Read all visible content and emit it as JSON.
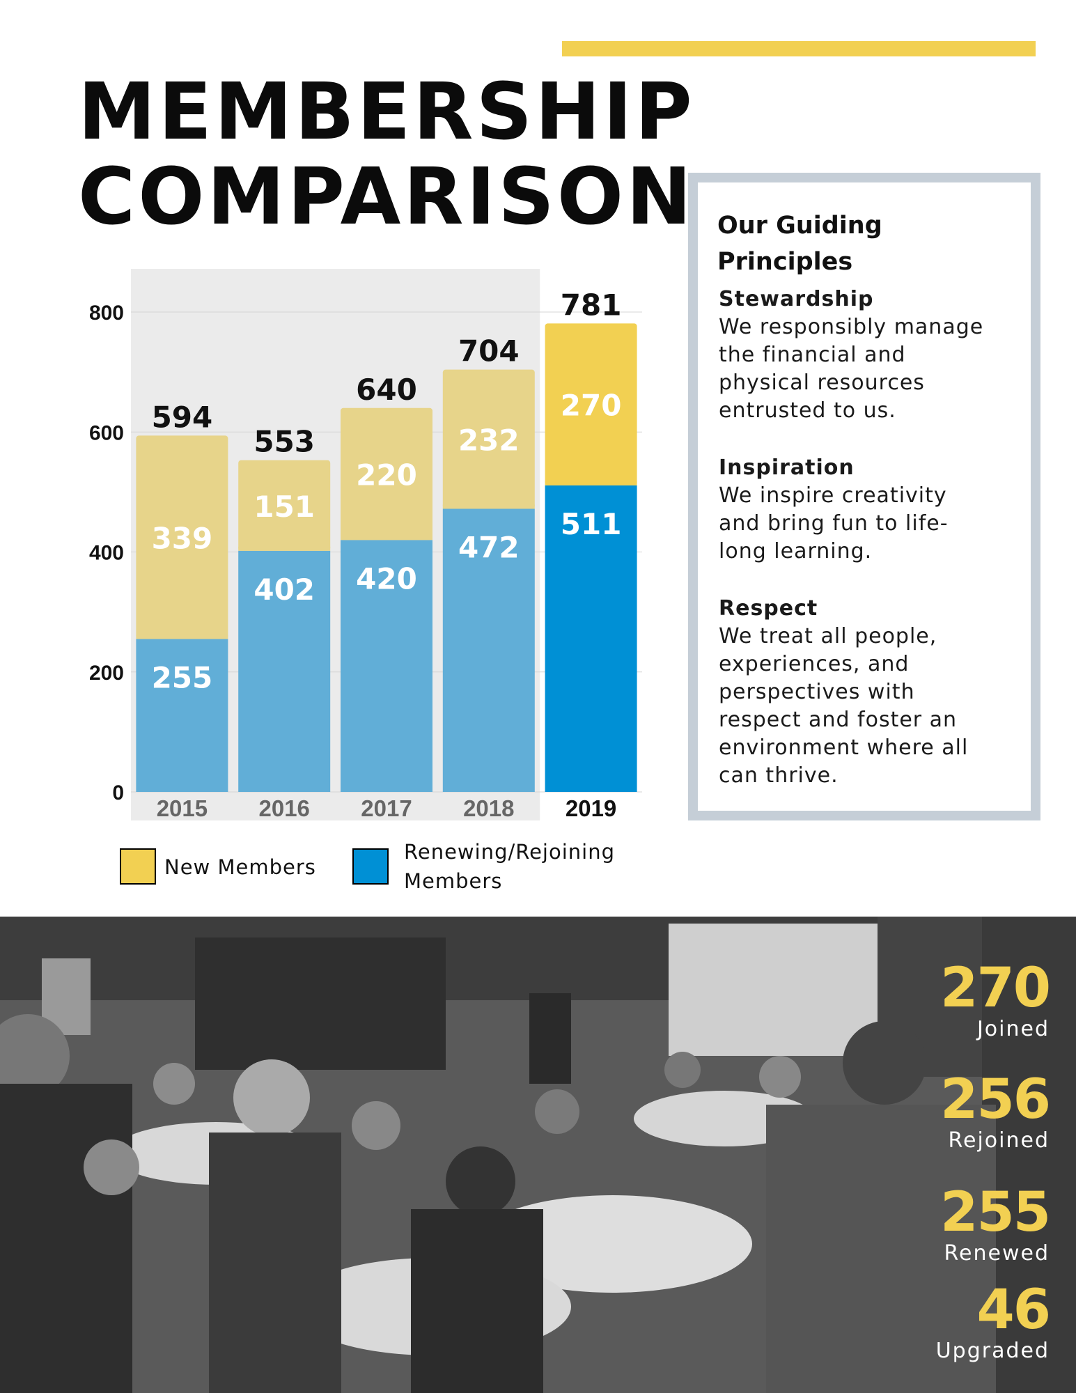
{
  "page": {
    "title_line1": "MEMBERSHIP",
    "title_line2": "COMPARISON"
  },
  "colors": {
    "accent_yellow": "#f2d052",
    "new_members_muted": "#e7d48a",
    "new_members_highlight": "#f2d052",
    "renewing_muted": "#61aed7",
    "renewing_highlight": "#0090d5",
    "chart_panel": "#ebebeb",
    "principles_border": "#c5ced7"
  },
  "chart_data": {
    "type": "bar",
    "stacked": true,
    "categories": [
      "2015",
      "2016",
      "2017",
      "2018",
      "2019"
    ],
    "series": [
      {
        "name": "Renewing/Rejoining Members",
        "values": [
          255,
          402,
          420,
          472,
          511
        ]
      },
      {
        "name": "New Members",
        "values": [
          339,
          151,
          220,
          232,
          270
        ]
      }
    ],
    "totals": [
      594,
      553,
      640,
      704,
      781
    ],
    "highlight_category": "2019",
    "yticks": [
      0,
      200,
      400,
      600,
      800
    ],
    "ylim": [
      0,
      850
    ],
    "grid": true,
    "legend_position": "bottom"
  },
  "legend": {
    "new_label": "New Members",
    "renew_label": "Renewing/Rejoining\nMembers"
  },
  "principles": {
    "heading": "Our Guiding Principles",
    "items": [
      {
        "title": "Stewardship",
        "text": "We responsibly manage\nthe financial and\nphysical resources\nentrusted to us."
      },
      {
        "title": "Inspiration",
        "text": "We inspire creativity\nand bring fun to life-\nlong learning."
      },
      {
        "title": "Respect",
        "text": "We treat all people,\nexperiences, and\nperspectives with\nrespect and foster an\nenvironment where all\ncan thrive."
      }
    ]
  },
  "stats": [
    {
      "value": "270",
      "label": "Joined"
    },
    {
      "value": "256",
      "label": "Rejoined"
    },
    {
      "value": "255",
      "label": "Renewed"
    },
    {
      "value": "46",
      "label": "Upgraded"
    }
  ]
}
